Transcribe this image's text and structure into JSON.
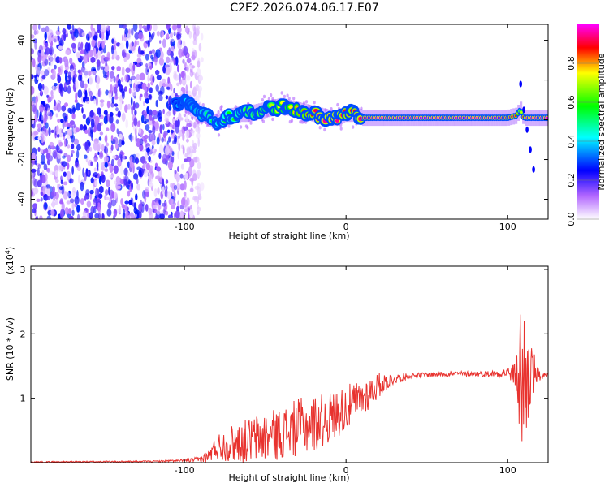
{
  "chart_data": [
    {
      "type": "heatmap",
      "title": "C2E2.2026.074.06.17.E07",
      "xlabel": "Height of straight line (km)",
      "ylabel": "Frequency (Hz)",
      "xlim": [
        -195,
        125
      ],
      "ylim": [
        -50,
        48
      ],
      "xticks": [
        -100,
        0,
        100
      ],
      "xtick_labels": [
        "-100",
        "0",
        "100"
      ],
      "yticks": [
        -40,
        -20,
        0,
        20,
        40
      ],
      "ytick_labels": [
        "-40",
        "-20",
        "0",
        "20",
        "40"
      ],
      "colorbar": {
        "label": "Normalized spectral amplitude",
        "range": [
          0,
          1
        ],
        "ticks": [
          0.0,
          0.2,
          0.4,
          0.6,
          0.8
        ],
        "tick_labels": [
          "0.0",
          "0.2",
          "0.4",
          "0.6",
          "0.8"
        ],
        "colors": [
          "#ffffff",
          "#b266ff",
          "#0000ff",
          "#00ffff",
          "#00ff00",
          "#ffff00",
          "#ff0000",
          "#ff00ff"
        ]
      },
      "ridge": {
        "description_series": "dominant frequency (Hz) vs height (km)",
        "x": [
          -105,
          -100,
          -95,
          -90,
          -85,
          -80,
          -75,
          -70,
          -65,
          -60,
          -55,
          -50,
          -45,
          -40,
          -35,
          -30,
          -25,
          -20,
          -15,
          -10,
          -5,
          0,
          5,
          10,
          20,
          40,
          60,
          80,
          90,
          100,
          105,
          108,
          110,
          115,
          120,
          125
        ],
        "y": [
          8,
          9,
          7,
          3,
          1,
          -2,
          1,
          2,
          3,
          3,
          4,
          5,
          6,
          7,
          6,
          5,
          4,
          3,
          2,
          1,
          1,
          3,
          3,
          1,
          1,
          1,
          1,
          1,
          1,
          1,
          2,
          5,
          1,
          1,
          1,
          1
        ],
        "amplitude": [
          0.35,
          0.4,
          0.45,
          0.5,
          0.5,
          0.55,
          0.55,
          0.6,
          0.6,
          0.65,
          0.65,
          0.7,
          0.7,
          0.75,
          0.75,
          0.8,
          0.85,
          0.9,
          0.95,
          0.95,
          0.95,
          0.9,
          0.9,
          0.95,
          1.0,
          1.0,
          1.0,
          1.0,
          1.0,
          0.95,
          0.9,
          0.6,
          0.95,
          1.0,
          1.0,
          1.0
        ]
      },
      "noise_region": {
        "x_from": -195,
        "x_to": -95,
        "level": 0.2
      },
      "spur": {
        "x": [
          108,
          110,
          112,
          114,
          116
        ],
        "y": [
          18,
          5,
          -5,
          -15,
          -25
        ]
      }
    },
    {
      "type": "line",
      "xlabel": "Height of straight line (km)",
      "ylabel": "SNR (10 * v/v)",
      "yscale_note": "(x10",
      "yscale_exp": "4",
      "yscale_close": ")",
      "xlim": [
        -195,
        125
      ],
      "ylim": [
        0,
        3.05
      ],
      "xticks": [
        -100,
        0,
        100
      ],
      "xtick_labels": [
        "-100",
        "0",
        "100"
      ],
      "yticks": [
        1,
        2,
        3
      ],
      "ytick_labels": [
        "1",
        "2",
        "3"
      ],
      "envelope": {
        "x": [
          -195,
          -120,
          -100,
          -90,
          -85,
          -80,
          -70,
          -60,
          -50,
          -40,
          -30,
          -20,
          -10,
          0,
          10,
          20,
          30,
          40,
          60,
          80,
          90,
          100,
          105,
          108,
          110,
          112,
          115,
          118,
          122,
          125
        ],
        "mean": [
          0.01,
          0.02,
          0.03,
          0.05,
          0.1,
          0.25,
          0.3,
          0.35,
          0.4,
          0.45,
          0.55,
          0.6,
          0.7,
          0.85,
          1.0,
          1.2,
          1.3,
          1.35,
          1.38,
          1.38,
          1.38,
          1.4,
          1.35,
          1.3,
          1.2,
          1.3,
          1.4,
          1.35,
          1.35,
          1.35
        ],
        "spread": [
          0.01,
          0.01,
          0.02,
          0.05,
          0.1,
          0.2,
          0.3,
          0.35,
          0.4,
          0.4,
          0.45,
          0.45,
          0.4,
          0.35,
          0.3,
          0.2,
          0.08,
          0.04,
          0.04,
          0.04,
          0.05,
          0.08,
          0.2,
          1.3,
          1.4,
          0.8,
          0.5,
          0.15,
          0.05,
          0.03
        ]
      },
      "series_color": "#e8322e"
    }
  ]
}
